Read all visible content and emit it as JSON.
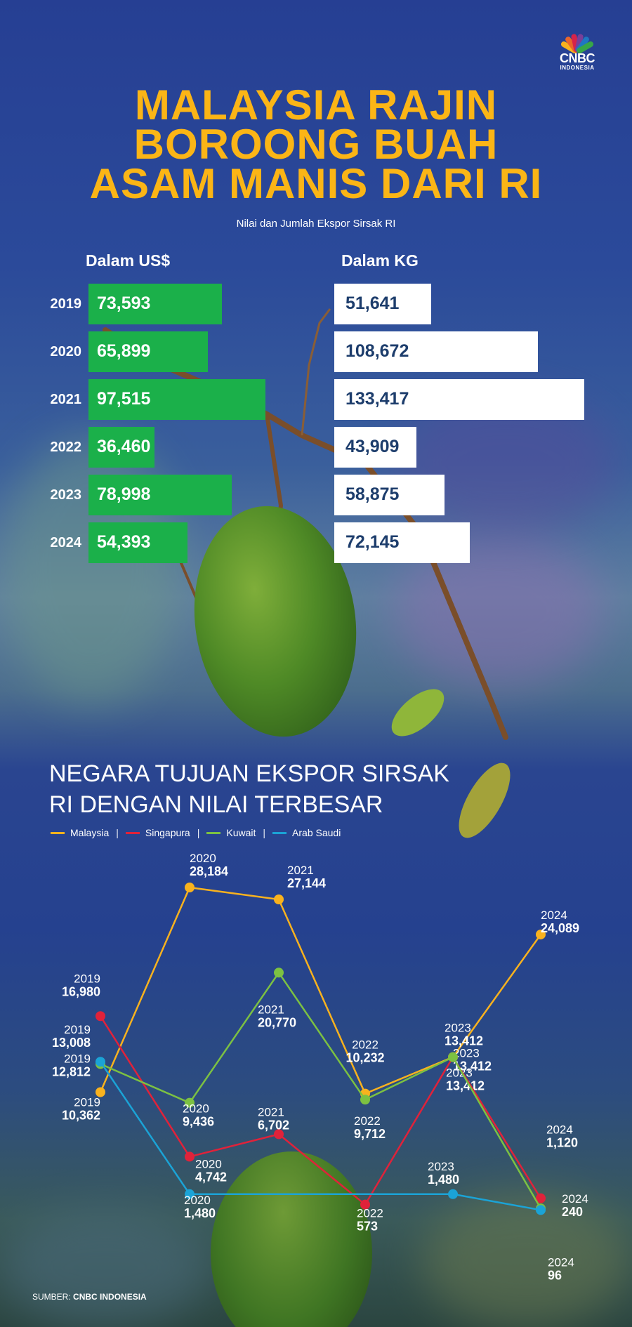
{
  "logo": {
    "brand": "CNBC",
    "sub": "INDONESIA"
  },
  "headline": [
    "MALAYSIA RAJIN",
    "BOROONG BUAH",
    "ASAM MANIS DARI RI"
  ],
  "subtitle": "Nilai dan Jumlah Ekspor Sirsak RI",
  "bar_section": {
    "usd_heading": "Dalam US$",
    "kg_heading": "Dalam KG"
  },
  "section_title": [
    "NEGARA TUJUAN EKSPOR SIRSAK",
    "RI DENGAN NILAI TERBESAR"
  ],
  "source": {
    "prefix": "SUMBER:",
    "name": "CNBC INDONESIA"
  },
  "colors": {
    "malaysia": "#f9b21e",
    "singapura": "#e0223a",
    "kuwait": "#7cc142",
    "arab_saudi": "#1ba3d6",
    "usd_bar": "#1bb04a",
    "headline": "#fbb516"
  },
  "chart_data": [
    {
      "type": "bar",
      "categories": [
        "2019",
        "2020",
        "2021",
        "2022",
        "2023",
        "2024"
      ],
      "series": [
        {
          "name": "Dalam US$",
          "values": [
            73593,
            65899,
            97515,
            36460,
            78998,
            54393
          ],
          "labels": [
            "73,593",
            "65,899",
            "97,515",
            "36,460",
            "78,998",
            "54,393"
          ]
        },
        {
          "name": "Dalam KG",
          "values": [
            51641,
            108672,
            133417,
            43909,
            58875,
            72145
          ],
          "labels": [
            "51,641",
            "108,672",
            "133,417",
            "43,909",
            "58,875",
            "72,145"
          ]
        }
      ]
    },
    {
      "type": "line",
      "x": [
        "2019",
        "2020",
        "2021",
        "2022",
        "2023",
        "2024"
      ],
      "series": [
        {
          "name": "Malaysia",
          "values": [
            10362,
            28184,
            27144,
            10232,
            13412,
            24089
          ],
          "labels": [
            "10,362",
            "28,184",
            "27,144",
            "10,232",
            "13,412",
            "24,089"
          ]
        },
        {
          "name": "Singapura",
          "values": [
            16980,
            4742,
            6702,
            573,
            13412,
            1120
          ],
          "labels": [
            "16,980",
            "4,742",
            "6,702",
            "573",
            "13,412",
            "1,120"
          ]
        },
        {
          "name": "Kuwait",
          "values": [
            12812,
            9436,
            20770,
            9712,
            13412,
            240
          ],
          "labels": [
            "12,812",
            "9,436",
            "20,770",
            "9,712",
            "13,412",
            "240"
          ]
        },
        {
          "name": "Arab Saudi",
          "values": [
            13008,
            1480,
            null,
            null,
            1480,
            96
          ],
          "labels": [
            "13,008",
            "1,480",
            "",
            "",
            "1,480",
            "96"
          ]
        }
      ]
    }
  ]
}
